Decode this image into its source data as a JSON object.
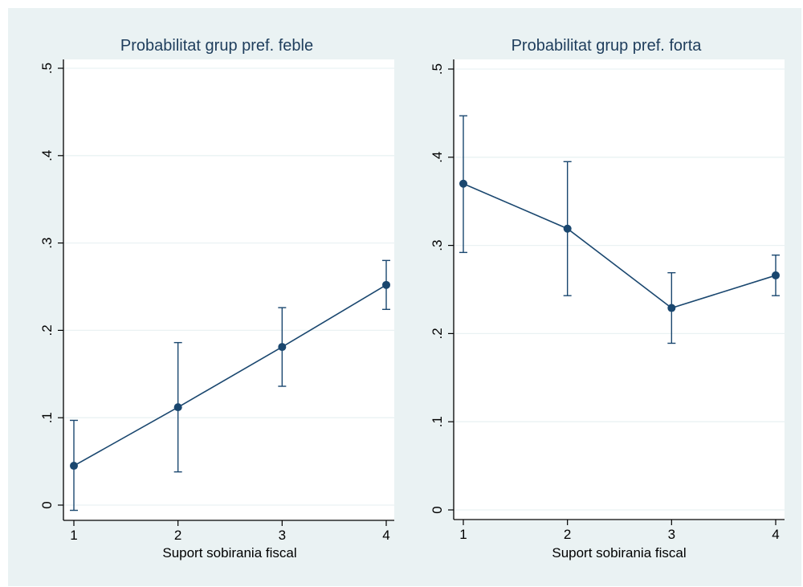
{
  "chart_data": [
    {
      "type": "line",
      "title": "Probabilitat grup pref. feble",
      "xlabel": "Suport sobirania fiscal",
      "ylabel": "",
      "x": [
        1,
        2,
        3,
        4
      ],
      "xticks": [
        "1",
        "2",
        "3",
        "4"
      ],
      "xlim": [
        1,
        4
      ],
      "ylim": [
        0,
        0.5
      ],
      "yticks": [
        0,
        0.1,
        0.2,
        0.3,
        0.4,
        0.5
      ],
      "ytick_labels": [
        "0",
        ".1",
        ".2",
        ".3",
        ".4",
        ".5"
      ],
      "grid": true,
      "series": [
        {
          "values": [
            0.045,
            0.112,
            0.181,
            0.252
          ],
          "ci_low": [
            -0.006,
            0.038,
            0.136,
            0.224
          ],
          "ci_high": [
            0.097,
            0.186,
            0.226,
            0.28
          ]
        }
      ]
    },
    {
      "type": "line",
      "title": "Probabilitat grup pref. forta",
      "xlabel": "Suport sobirania fiscal",
      "ylabel": "",
      "x": [
        1,
        2,
        3,
        4
      ],
      "xticks": [
        "1",
        "2",
        "3",
        "4"
      ],
      "xlim": [
        1,
        4
      ],
      "ylim": [
        0,
        0.5
      ],
      "yticks": [
        0,
        0.1,
        0.2,
        0.3,
        0.4,
        0.5
      ],
      "ytick_labels": [
        "0",
        ".1",
        ".2",
        ".3",
        ".4",
        ".5"
      ],
      "grid": true,
      "series": [
        {
          "values": [
            0.37,
            0.319,
            0.229,
            0.266
          ],
          "ci_low": [
            0.292,
            0.243,
            0.189,
            0.243
          ],
          "ci_high": [
            0.447,
            0.395,
            0.269,
            0.289
          ]
        }
      ]
    }
  ],
  "colors": {
    "background": "#eaf2f3",
    "plot_area": "#ffffff",
    "series": "#1a476f",
    "grid": "#eaf2f3",
    "text": "#000000",
    "title": "#1e3d5c"
  }
}
